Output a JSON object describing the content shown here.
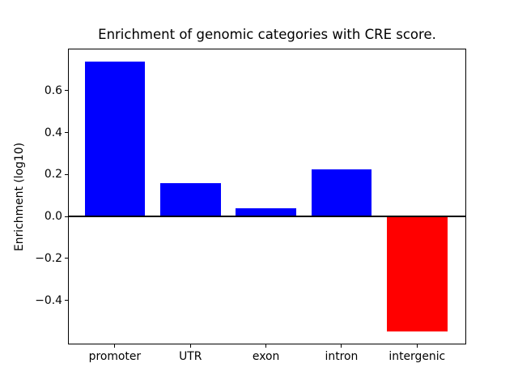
{
  "chart_data": {
    "type": "bar",
    "title": "Enrichment of genomic categories with CRE score.",
    "xlabel": "",
    "ylabel": "Enrichment (log10)",
    "categories": [
      "promoter",
      "UTR",
      "exon",
      "intron",
      "intergenic"
    ],
    "values": [
      0.74,
      0.16,
      0.04,
      0.225,
      -0.55
    ],
    "bar_colors": [
      "#0000ff",
      "#0000ff",
      "#0000ff",
      "#0000ff",
      "#ff0000"
    ],
    "positive_color": "#0000ff",
    "negative_color": "#ff0000",
    "ytick_values": [
      0.6,
      0.4,
      0.2,
      0.0,
      -0.2,
      -0.4
    ],
    "ytick_labels": [
      "0.6",
      "0.4",
      "0.2",
      "0.0",
      "−0.2",
      "−0.4"
    ],
    "ylim": [
      -0.61,
      0.8
    ],
    "grid": false,
    "legend": null,
    "zero_line": true,
    "axis_color": "#000000",
    "background_color": "#ffffff"
  }
}
